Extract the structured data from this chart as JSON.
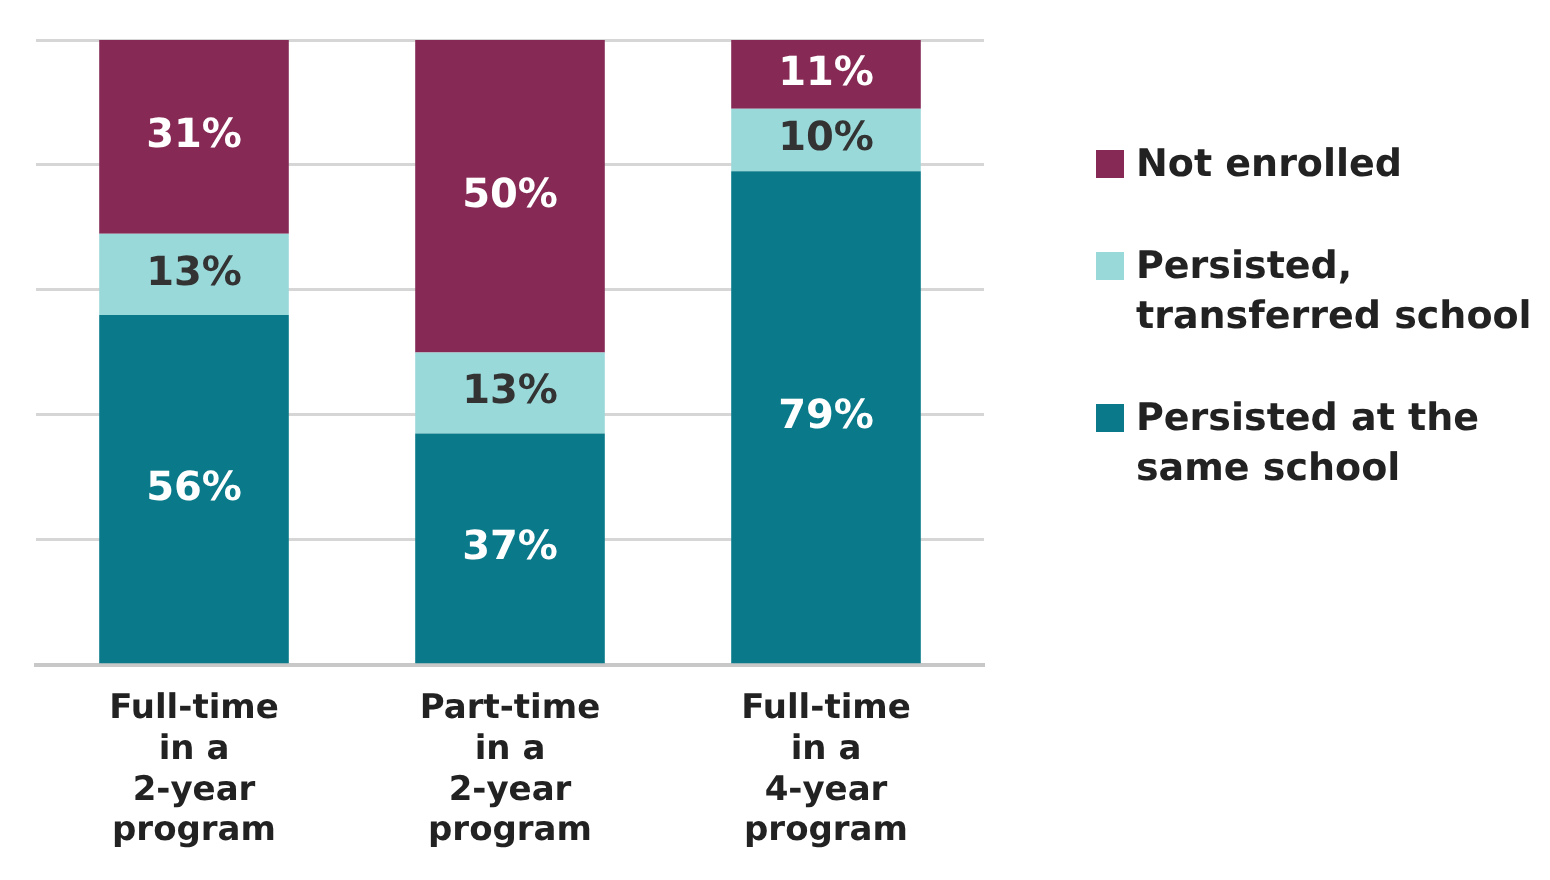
{
  "chart_data": {
    "type": "bar",
    "stacked": true,
    "categories": [
      "Full-time in a 2-year program",
      "Part-time in a 2-year program",
      "Full-time in a 4-year program"
    ],
    "series": [
      {
        "name": "Persisted at the same school",
        "color": "#0a7a8a",
        "values": [
          56,
          37,
          79
        ],
        "value_labels": [
          "56%",
          "37%",
          "79%"
        ]
      },
      {
        "name": "Persisted, transferred school",
        "color": "#9ad9da",
        "values": [
          13,
          13,
          10
        ],
        "value_labels": [
          "13%",
          "13%",
          "10%"
        ]
      },
      {
        "name": "Not enrolled",
        "color": "#862a55",
        "values": [
          31,
          50,
          11
        ],
        "value_labels": [
          "31%",
          "50%",
          "11%"
        ]
      }
    ],
    "ylim": [
      0,
      100
    ],
    "yticks": [
      {
        "value": 0,
        "label": null
      },
      {
        "value": 20,
        "label": null
      },
      {
        "value": 40,
        "label": null
      },
      {
        "value": 60,
        "label": null
      },
      {
        "value": 80,
        "label": null
      },
      {
        "value": 100,
        "label": null
      }
    ],
    "grid": "y",
    "tick_labels": "x",
    "legend": "right"
  }
}
